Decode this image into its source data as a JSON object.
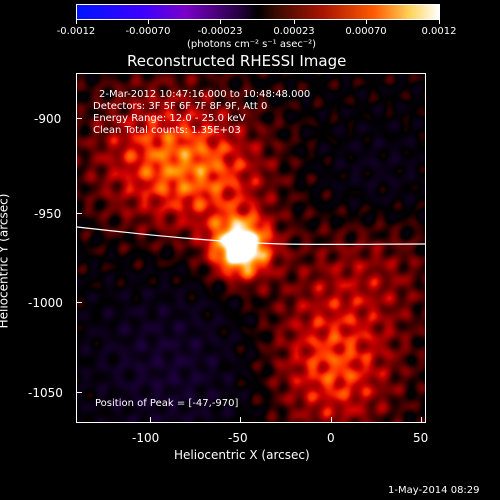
{
  "colorbar": {
    "tick_labels": [
      "-0.0012",
      "-0.00070",
      "-0.00023",
      "0.00023",
      "0.00070",
      "0.0012"
    ],
    "units_label": "(photons cm⁻² s⁻¹ asec⁻²)"
  },
  "plot": {
    "title": "Reconstructed RHESSI Image",
    "info_lines": [
      "2-Mar-2012 10:47:16.000 to 10:48:48.000",
      "Detectors: 3F 5F 6F 7F 8F 9F, Att 0",
      "Energy Range: 12.0 - 25.0 keV",
      "Clean      Total counts: 1.35E+03"
    ],
    "peak_text": "Position of Peak = [-47,-970]",
    "xlabel": "Heliocentric X (arcsec)",
    "ylabel": "Heliocentric Y (arcsec)",
    "x_ticks": [
      "-100",
      "-50",
      "0",
      "50"
    ],
    "y_ticks": [
      "-900",
      "-950",
      "-1000",
      "-1050"
    ]
  },
  "footer": {
    "date": "1-May-2014 08:29"
  }
}
